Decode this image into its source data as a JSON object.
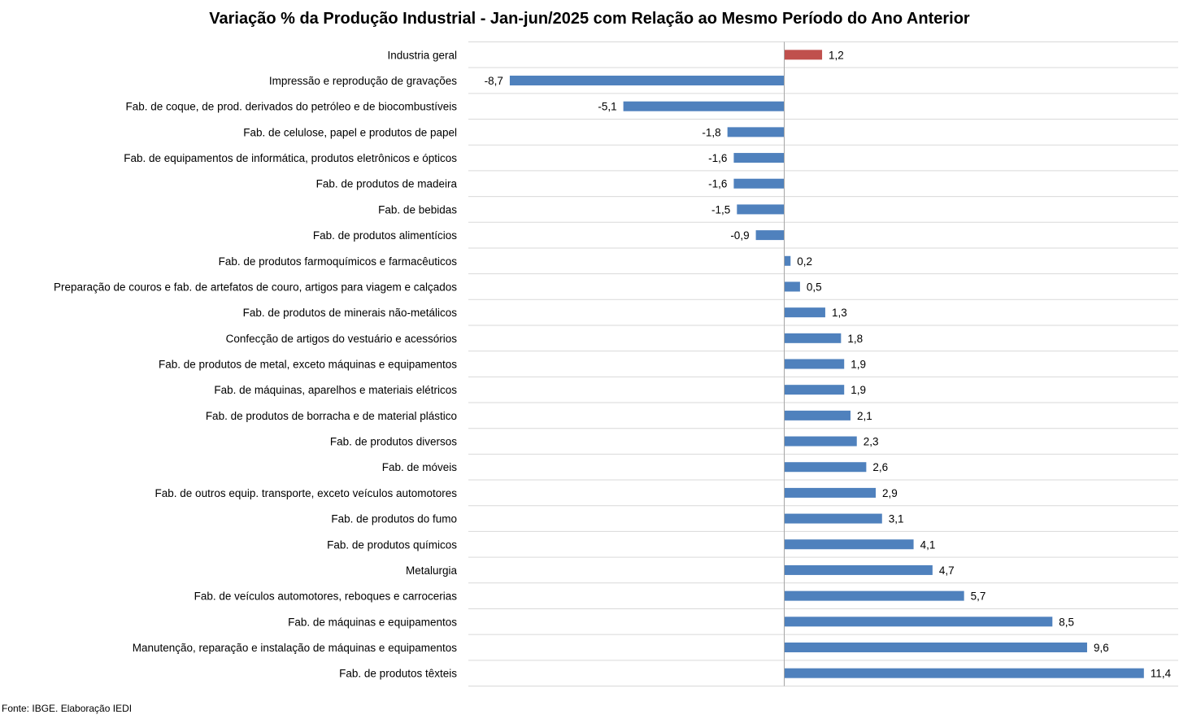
{
  "chart_data": {
    "type": "bar",
    "orientation": "horizontal",
    "title": "Variação % da Produção Industrial - Jan-jun/2025 com Relação ao Mesmo Período do Ano Anterior",
    "source": "Fonte: IBGE. Elaboração IEDI",
    "xlim": [
      -8.7,
      11.4
    ],
    "grid": true,
    "legend": "none",
    "colors": {
      "highlight": "#c0504d",
      "default": "#4f81bd",
      "grid": "#d9d9d9",
      "axis": "#a6a6a6"
    },
    "categories": [
      "Industria geral",
      "Impressão e reprodução de gravações",
      "Fab. de coque, de prod. derivados do petróleo e de biocombustíveis",
      "Fab. de celulose, papel e produtos de papel",
      "Fab. de equipamentos de informática, produtos eletrônicos e ópticos",
      "Fab. de produtos de madeira",
      "Fab. de bebidas",
      "Fab. de produtos alimentícios",
      "Fab. de produtos farmoquímicos e farmacêuticos",
      "Preparação de couros e fab. de artefatos de couro, artigos para viagem e calçados",
      "Fab. de produtos de minerais não-metálicos",
      "Confecção de artigos do vestuário e acessórios",
      "Fab. de produtos de metal, exceto máquinas e equipamentos",
      "Fab. de máquinas, aparelhos e materiais elétricos",
      "Fab. de produtos de borracha e de material plástico",
      "Fab. de produtos diversos",
      "Fab. de móveis",
      "Fab. de outros equip. transporte, exceto veículos automotores",
      "Fab. de produtos do fumo",
      "Fab. de produtos químicos",
      "Metalurgia",
      "Fab. de veículos automotores, reboques e carrocerias",
      "Fab. de máquinas e equipamentos",
      "Manutenção, reparação e instalação de máquinas e equipamentos",
      "Fab. de produtos têxteis"
    ],
    "values": [
      1.2,
      -8.7,
      -5.1,
      -1.8,
      -1.6,
      -1.6,
      -1.5,
      -0.9,
      0.2,
      0.5,
      1.3,
      1.8,
      1.9,
      1.9,
      2.1,
      2.3,
      2.6,
      2.9,
      3.1,
      4.1,
      4.7,
      5.7,
      8.5,
      9.6,
      11.4
    ],
    "value_labels": [
      "1,2",
      "-8,7",
      "-5,1",
      "-1,8",
      "-1,6",
      "-1,6",
      "-1,5",
      "-0,9",
      "0,2",
      "0,5",
      "1,3",
      "1,8",
      "1,9",
      "1,9",
      "2,1",
      "2,3",
      "2,6",
      "2,9",
      "3,1",
      "4,1",
      "4,7",
      "5,7",
      "8,5",
      "9,6",
      "11,4"
    ],
    "highlight_index": 0
  }
}
